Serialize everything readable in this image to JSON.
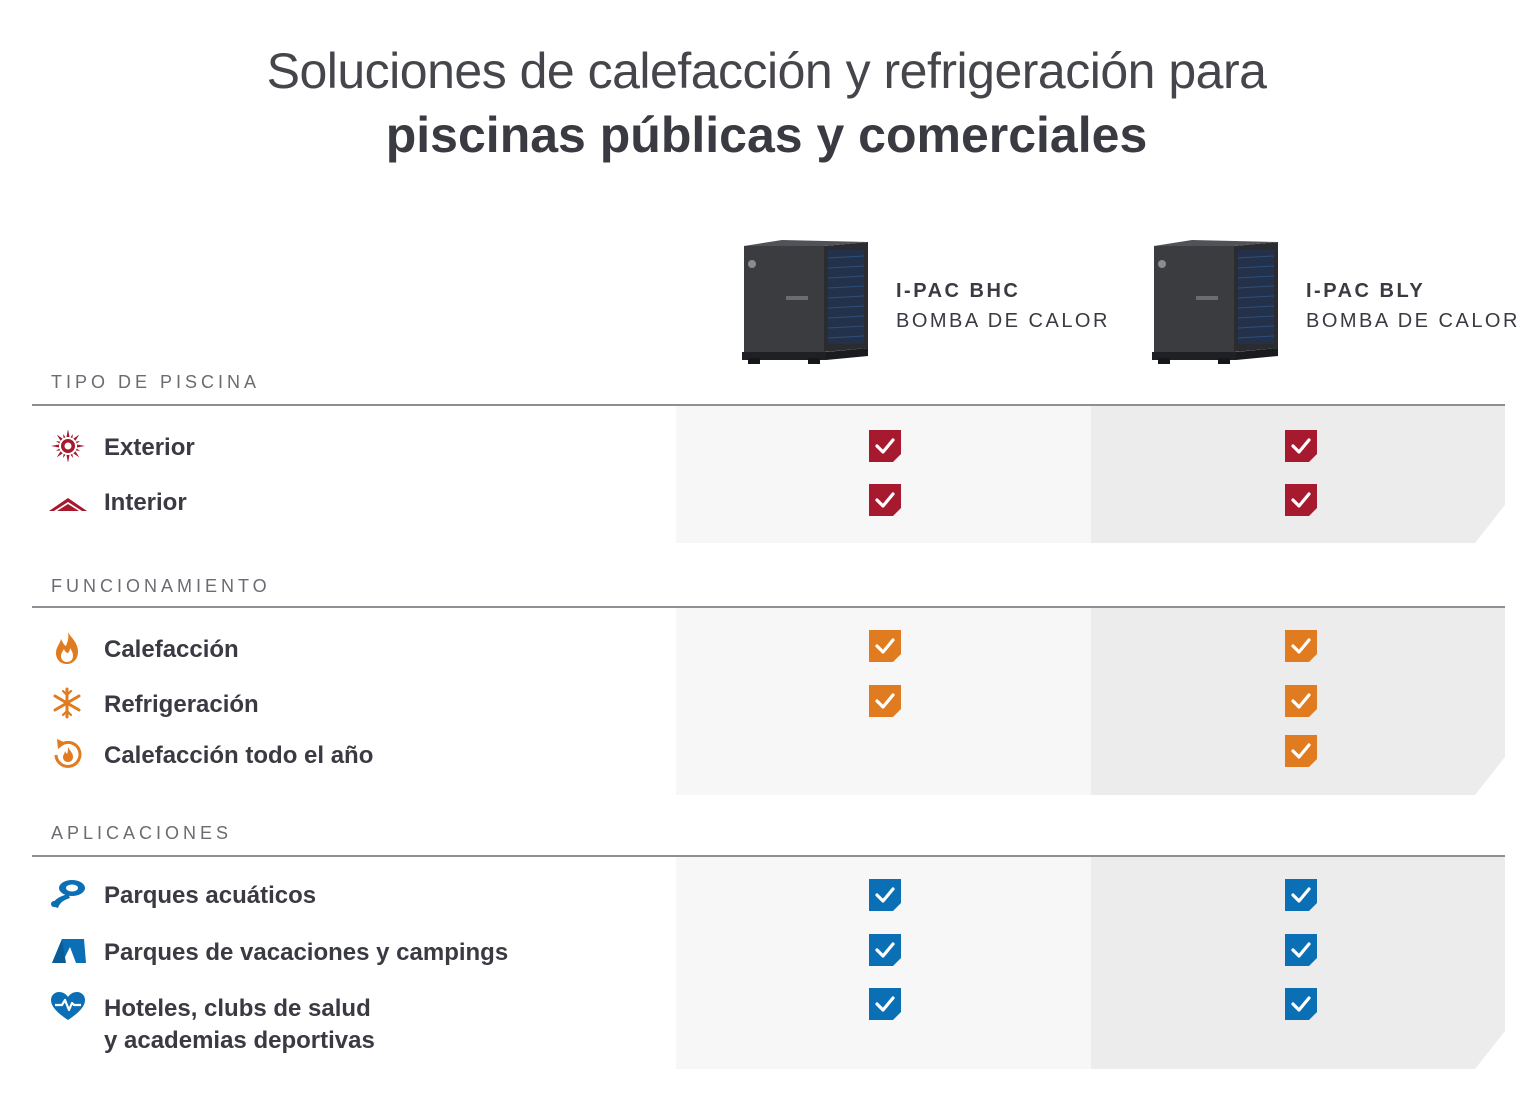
{
  "title": {
    "line1": "Soluciones de calefacción y refrigeración para",
    "line2": "piscinas públicas y comerciales"
  },
  "products": [
    {
      "name": "I-PAC BHC",
      "type": "BOMBA DE CALOR",
      "icon": "heat-pump-image"
    },
    {
      "name": "I-PAC BLY",
      "type": "BOMBA DE CALOR",
      "icon": "heat-pump-image"
    }
  ],
  "colors": {
    "pool_type": "#a6192e",
    "operation": "#e07b1f",
    "applications": "#0b6fb5",
    "panel_a": "#f7f7f7",
    "panel_b": "#ececec"
  },
  "sections": [
    {
      "label": "TIPO DE PISCINA",
      "color": "#a6192e",
      "rows": [
        {
          "label": "Exterior",
          "icon": "sun-icon",
          "checks": [
            true,
            true
          ]
        },
        {
          "label": "Interior",
          "icon": "roof-icon",
          "checks": [
            true,
            true
          ]
        }
      ]
    },
    {
      "label": "FUNCIONAMIENTO",
      "color": "#e07b1f",
      "rows": [
        {
          "label": "Calefacción",
          "icon": "flame-icon",
          "checks": [
            true,
            true
          ]
        },
        {
          "label": "Refrigeración",
          "icon": "snowflake-icon",
          "checks": [
            true,
            true
          ]
        },
        {
          "label": "Calefacción todo el año",
          "icon": "year-round-heating-icon",
          "checks": [
            false,
            true
          ]
        }
      ]
    },
    {
      "label": "APLICACIONES",
      "color": "#0b6fb5",
      "rows": [
        {
          "label": "Parques acuáticos",
          "icon": "water-slide-icon",
          "checks": [
            true,
            true
          ]
        },
        {
          "label": "Parques de vacaciones y campings",
          "icon": "tent-icon",
          "checks": [
            true,
            true
          ]
        },
        {
          "label": "Hoteles, clubs de salud",
          "label2": "y academias deportivas",
          "icon": "heart-pulse-icon",
          "checks": [
            true,
            true
          ]
        }
      ]
    }
  ]
}
